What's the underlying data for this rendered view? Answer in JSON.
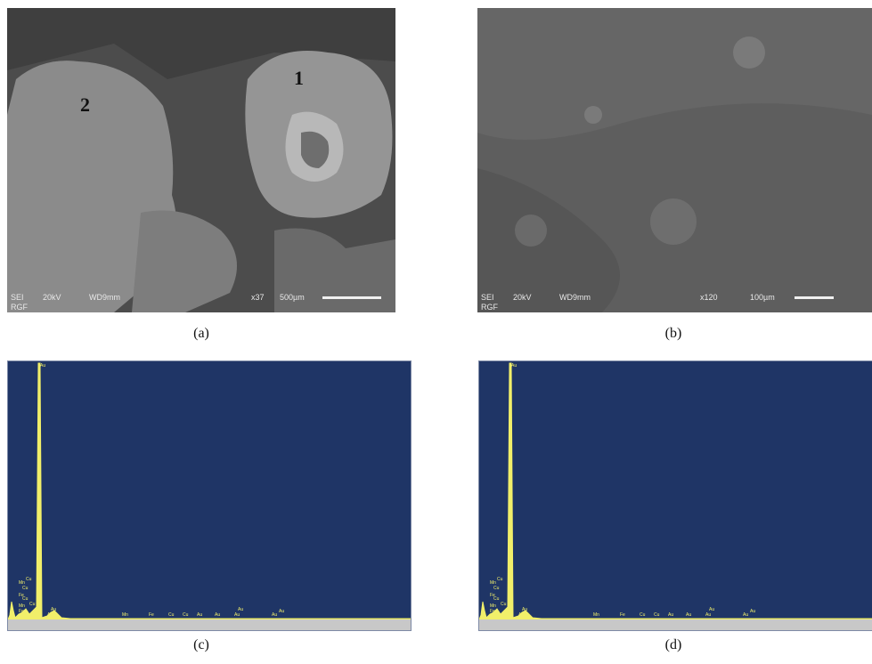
{
  "panels": {
    "a": {
      "caption": "(a)",
      "region_labels": [
        "1",
        "2"
      ],
      "info": {
        "detector": "SEI",
        "voltage": "20kV",
        "wd": "WD9mm",
        "mag": "x37",
        "scale": "500µm",
        "lab": "RGF"
      }
    },
    "b": {
      "caption": "(b)",
      "info": {
        "detector": "SEI",
        "voltage": "20kV",
        "wd": "WD9mm",
        "mag": "x120",
        "scale": "100µm",
        "lab": "RGF"
      }
    },
    "c": {
      "caption": "(c)",
      "peak_labels": [
        "Au",
        "Mn",
        "Cu",
        "Cu",
        "Fe",
        "Cu",
        "Cu",
        "Mn",
        "Fe",
        "Au",
        "Mn",
        "Fe",
        "Cu",
        "Cu",
        "Au",
        "Au",
        "Au",
        "Au",
        "Au",
        "Au",
        "Au"
      ]
    },
    "d": {
      "caption": "(d)",
      "peak_labels": [
        "Au",
        "Mn",
        "Cu",
        "Cu",
        "Fe",
        "Cu",
        "Cu",
        "Mn",
        "Fe",
        "Au",
        "Mn",
        "Fe",
        "Cu",
        "Cu",
        "Au",
        "Au",
        "Au",
        "Au",
        "Au",
        "Au",
        "Au"
      ]
    }
  },
  "colors": {
    "spectrum_bg": "#1f3566",
    "peak": "#f1ef6a",
    "sem_gray": "#5a5a5a"
  }
}
